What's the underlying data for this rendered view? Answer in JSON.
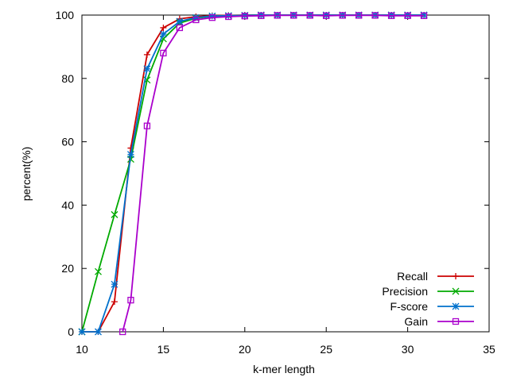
{
  "chart_data": {
    "type": "line",
    "title": "",
    "xlabel": "k-mer length",
    "ylabel": "percent(%)",
    "xlim": [
      10,
      35
    ],
    "ylim": [
      0,
      100
    ],
    "xticks": [
      10,
      15,
      20,
      25,
      30,
      35
    ],
    "yticks": [
      0,
      20,
      40,
      60,
      80,
      100
    ],
    "grid": false,
    "legend_position": "bottom-right",
    "series": [
      {
        "name": "Recall",
        "color": "#cc0000",
        "marker": "plus",
        "x": [
          10,
          11,
          12,
          13,
          14,
          15,
          16,
          17,
          18,
          19,
          20,
          21,
          22,
          23,
          24,
          25,
          26,
          27,
          28,
          29,
          30,
          31
        ],
        "y": [
          0,
          0,
          9.5,
          58,
          87.5,
          96,
          98.8,
          99.5,
          99.8,
          99.9,
          100,
          100,
          100,
          100,
          100,
          100,
          100,
          100,
          100,
          100,
          100,
          100
        ]
      },
      {
        "name": "Precision",
        "color": "#00aa00",
        "marker": "x",
        "x": [
          10,
          11,
          12,
          13,
          14,
          15,
          16,
          17,
          18,
          19,
          20,
          21,
          22,
          23,
          24,
          25,
          26,
          27,
          28,
          29,
          30,
          31
        ],
        "y": [
          0,
          19,
          37,
          54.5,
          79.5,
          92.5,
          97.5,
          99,
          99.6,
          99.8,
          99.9,
          100,
          100,
          100,
          100,
          100,
          100,
          100,
          100,
          100,
          100,
          100
        ]
      },
      {
        "name": "F-score",
        "color": "#0070cc",
        "marker": "star",
        "x": [
          10,
          11,
          12,
          13,
          14,
          15,
          16,
          17,
          18,
          19,
          20,
          21,
          22,
          23,
          24,
          25,
          26,
          27,
          28,
          29,
          30,
          31
        ],
        "y": [
          0,
          0,
          15,
          56,
          83,
          94,
          98,
          99.2,
          99.7,
          99.8,
          99.9,
          100,
          100,
          100,
          100,
          100,
          100,
          100,
          100,
          100,
          100,
          100
        ]
      },
      {
        "name": "Gain",
        "color": "#aa00cc",
        "marker": "square",
        "x": [
          12.5,
          13,
          14,
          15,
          16,
          17,
          18,
          19,
          20,
          21,
          22,
          23,
          24,
          25,
          26,
          27,
          28,
          29,
          30,
          31
        ],
        "y": [
          0,
          10,
          65,
          88,
          96,
          98.5,
          99.2,
          99.5,
          99.7,
          99.8,
          99.9,
          99.9,
          99.9,
          99.8,
          99.9,
          99.9,
          99.9,
          99.8,
          99.8,
          99.8
        ]
      }
    ]
  }
}
